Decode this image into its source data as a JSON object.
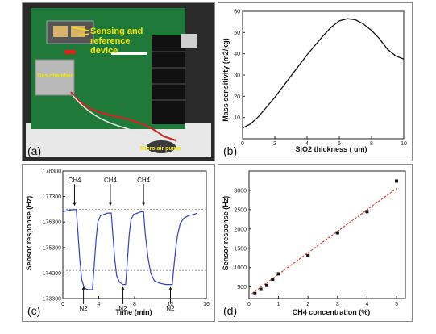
{
  "panel_a": {
    "label": "(a)",
    "annotations": {
      "sensing": "Sensing and",
      "reference": "reference",
      "device": "device",
      "gas_chamber": "Gas chamber",
      "pump": "Micro air pump"
    },
    "colors": {
      "board": "#1f7a3a",
      "board_dark": "#145a28",
      "annotation": "#f2e600"
    }
  },
  "chart_data": [
    {
      "panel_label": "(b)",
      "type": "line",
      "xlabel": "SiO2 thickness ( um)",
      "ylabel": "Mass sensitivity (m2/kg)",
      "xlim": [
        0,
        10
      ],
      "ylim": [
        0,
        60
      ],
      "xticks": [
        "0",
        "2",
        "4",
        "6",
        "8",
        "10"
      ],
      "yticks": [
        "10",
        "20",
        "30",
        "40",
        "50",
        "60"
      ],
      "series": [
        {
          "x": [
            0,
            0.5,
            1,
            1.5,
            2,
            2.5,
            3,
            3.5,
            4,
            4.5,
            5,
            5.5,
            6,
            6.5,
            7,
            7.5,
            8,
            8.5,
            9,
            9.5,
            10
          ],
          "y": [
            5,
            7,
            10.5,
            15,
            19.5,
            24.5,
            29.5,
            34.5,
            39.5,
            44,
            48.5,
            52.5,
            55.5,
            56.5,
            56,
            54,
            51,
            47,
            42,
            39,
            37.5
          ],
          "color": "#111111"
        }
      ]
    },
    {
      "panel_label": "(c)",
      "type": "line",
      "xlabel": "Time (min)",
      "ylabel": "Sensor response (Hz)",
      "xlim": [
        0,
        16
      ],
      "ylim": [
        173300,
        178300
      ],
      "xticks": [
        "0",
        "4",
        "8",
        "12",
        "16"
      ],
      "yticks": [
        "173300",
        "174300",
        "175300",
        "176300",
        "177300",
        "178300"
      ],
      "ytick_values": [
        173300,
        174300,
        175300,
        176300,
        177300,
        178300
      ],
      "hlines": [
        176800,
        174400
      ],
      "annotations": [
        {
          "text": "CH4",
          "x": 1.3,
          "y": 177850,
          "arrow_to": 176950,
          "dir": "down"
        },
        {
          "text": "CH4",
          "x": 5.3,
          "y": 177850,
          "arrow_to": 176950,
          "dir": "down"
        },
        {
          "text": "CH4",
          "x": 9.0,
          "y": 177850,
          "arrow_to": 176950,
          "dir": "down"
        },
        {
          "text": "N2",
          "x": 2.3,
          "y": 173050,
          "arrow_to": 173750,
          "dir": "up"
        },
        {
          "text": "N2",
          "x": 6.7,
          "y": 173050,
          "arrow_to": 173750,
          "dir": "up"
        },
        {
          "text": "N2",
          "x": 12.0,
          "y": 173050,
          "arrow_to": 173750,
          "dir": "up"
        }
      ],
      "series": [
        {
          "x": [
            0,
            0.5,
            1,
            1.5,
            1.7,
            1.9,
            2.1,
            2.4,
            2.8,
            3.3,
            3.5,
            3.7,
            3.9,
            4.2,
            4.6,
            5.0,
            5.4,
            5.6,
            5.8,
            6.0,
            6.3,
            6.7,
            7.0,
            7.2,
            7.4,
            7.6,
            7.9,
            8.3,
            8.7,
            9.0,
            9.2,
            9.5,
            9.8,
            10.2,
            10.8,
            11.5,
            12.2,
            12.4,
            12.6,
            12.8,
            13.1,
            13.5,
            14.0,
            14.6,
            15.0
          ],
          "y": [
            176700,
            176750,
            176780,
            176790,
            175800,
            174800,
            174050,
            173700,
            173650,
            173650,
            174600,
            175600,
            176300,
            176550,
            176600,
            176650,
            176650,
            175700,
            174800,
            174200,
            173950,
            173850,
            173850,
            174800,
            175800,
            176400,
            176600,
            176650,
            176700,
            176700,
            175800,
            174900,
            174300,
            174000,
            173900,
            173850,
            173850,
            174600,
            175300,
            175800,
            176250,
            176450,
            176550,
            176600,
            176650
          ],
          "color": "#2f3fd0"
        }
      ]
    },
    {
      "panel_label": "(d)",
      "type": "scatter",
      "xlabel": "CH4 concentration (%)",
      "ylabel": "Sensor response (Hz)",
      "xlim": [
        0,
        5.3
      ],
      "ylim": [
        200,
        3500
      ],
      "xticks": [
        "0",
        "1",
        "2",
        "3",
        "4",
        "5"
      ],
      "yticks": [
        "500",
        "1000",
        "1500",
        "2000",
        "2500",
        "3000"
      ],
      "points": {
        "x": [
          0.2,
          0.4,
          0.6,
          0.8,
          1.0,
          2.0,
          3.0,
          4.0,
          5.0
        ],
        "y": [
          330,
          440,
          540,
          700,
          840,
          1310,
          1900,
          2450,
          3240
        ]
      },
      "fit": {
        "x": [
          0.1,
          5.0
        ],
        "y": [
          330,
          3050
        ],
        "color": "#e0231a"
      }
    }
  ]
}
